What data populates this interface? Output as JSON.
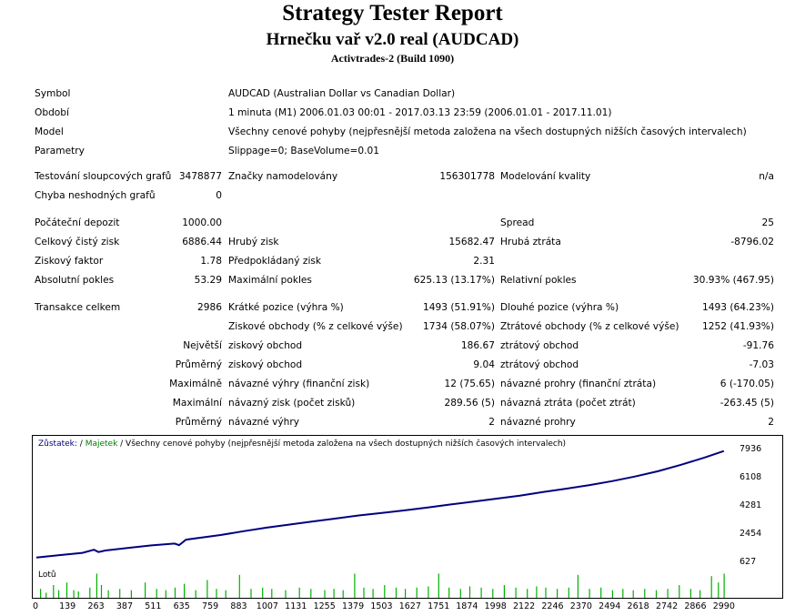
{
  "header": {
    "title": "Strategy Tester Report",
    "subtitle": "Hrnečku vař v2.0 real (AUDCAD)",
    "broker": "Activtrades-2 (Build 1090)"
  },
  "info": {
    "symbol_label": "Symbol",
    "symbol_value": "AUDCAD (Australian Dollar vs Canadian Dollar)",
    "period_label": "Období",
    "period_value": "1 minuta (M1) 2006.01.03 00:01 - 2017.03.13 23:59 (2006.01.01 - 2017.11.01)",
    "model_label": "Model",
    "model_value": "Všechny cenové pohyby (nejpřesnější metoda založena na všech dostupných nižších časových intervalech)",
    "params_label": "Parametry",
    "params_value": "Slippage=0; BaseVolume=0.01"
  },
  "stats": {
    "bars_tested_label": "Testování sloupcových grafů",
    "bars_tested_value": "3478877",
    "ticks_label": "Značky namodelovány",
    "ticks_value": "156301778",
    "quality_label": "Modelování kvality",
    "quality_value": "n/a",
    "mismatch_label": "Chyba neshodných grafů",
    "mismatch_value": "0",
    "deposit_label": "Počáteční depozit",
    "deposit_value": "1000.00",
    "spread_label": "Spread",
    "spread_value": "25",
    "net_profit_label": "Celkový čistý zisk",
    "net_profit_value": "6886.44",
    "gross_profit_label": "Hrubý zisk",
    "gross_profit_value": "15682.47",
    "gross_loss_label": "Hrubá ztráta",
    "gross_loss_value": "-8796.02",
    "profit_factor_label": "Ziskový faktor",
    "profit_factor_value": "1.78",
    "expected_payoff_label": "Předpokládaný zisk",
    "expected_payoff_value": "2.31",
    "abs_dd_label": "Absolutní pokles",
    "abs_dd_value": "53.29",
    "max_dd_label": "Maximální pokles",
    "max_dd_value": "625.13 (13.17%)",
    "rel_dd_label": "Relativní pokles",
    "rel_dd_value": "30.93% (467.95)",
    "total_trades_label": "Transakce celkem",
    "total_trades_value": "2986",
    "short_label": "Krátké pozice (výhra %)",
    "short_value": "1493 (51.91%)",
    "long_label": "Dlouhé pozice (výhra %)",
    "long_value": "1493 (64.23%)",
    "profit_trades_label": "Ziskové obchody (% z celkové výše)",
    "profit_trades_value": "1734 (58.07%)",
    "loss_trades_label": "Ztrátové obchody (% z celkové výše)",
    "loss_trades_value": "1252 (41.93%)",
    "largest_label": "Největší",
    "largest_profit_label": "ziskový obchod",
    "largest_profit_value": "186.67",
    "largest_loss_label": "ztrátový obchod",
    "largest_loss_value": "-91.76",
    "average_label": "Průměrný",
    "average_profit_label": "ziskový obchod",
    "average_profit_value": "9.04",
    "average_loss_label": "ztrátový obchod",
    "average_loss_value": "-7.03",
    "max_cons_label": "Maximálně",
    "max_cons_wins_label": "návazné výhry (finanční zisk)",
    "max_cons_wins_value": "12 (75.65)",
    "max_cons_losses_label": "návazné prohry (finanční ztráta)",
    "max_cons_losses_value": "6 (-170.05)",
    "maximal_label": "Maximální",
    "maximal_profit_label": "návazný zisk (počet zisků)",
    "maximal_profit_value": "289.56 (5)",
    "maximal_loss_label": "návazná ztráta (počet ztrát)",
    "maximal_loss_value": "-263.45 (5)",
    "avg_cons_label": "Průměrný",
    "avg_cons_wins_label": "návazné výhry",
    "avg_cons_wins_value": "2",
    "avg_cons_losses_label": "návazné prohry",
    "avg_cons_losses_value": "2"
  },
  "chart_data": {
    "type": "line",
    "legend": {
      "balance": "Zůstatek:",
      "separator": " / ",
      "equity": "Majetek",
      "rest": " / Všechny cenové pohyby (nejpřesnější metoda založena na všech dostupných nižších časových intervalech)"
    },
    "y_ticks": [
      "7936",
      "6108",
      "4281",
      "2454",
      "627"
    ],
    "y_tick_values": [
      7936,
      6108,
      4281,
      2454,
      627
    ],
    "x_ticks": [
      "0",
      "139",
      "263",
      "387",
      "511",
      "635",
      "759",
      "883",
      "1007",
      "1131",
      "1255",
      "1379",
      "1503",
      "1627",
      "1751",
      "1874",
      "1998",
      "2122",
      "2246",
      "2370",
      "2494",
      "2618",
      "2742",
      "2866",
      "2990"
    ],
    "ylim": [
      627,
      8400
    ],
    "xlim": [
      0,
      3050
    ],
    "series": [
      {
        "name": "Zůstatek",
        "color": "#000080",
        "x": [
          0,
          100,
          200,
          250,
          270,
          300,
          400,
          500,
          600,
          620,
          650,
          700,
          800,
          900,
          1000,
          1100,
          1200,
          1300,
          1400,
          1500,
          1600,
          1700,
          1800,
          1900,
          2000,
          2100,
          2200,
          2300,
          2400,
          2500,
          2600,
          2700,
          2800,
          2900,
          2986
        ],
        "y": [
          1000,
          1150,
          1300,
          1500,
          1350,
          1450,
          1620,
          1780,
          1900,
          1800,
          2150,
          2250,
          2450,
          2700,
          2930,
          3130,
          3330,
          3520,
          3720,
          3880,
          4050,
          4230,
          4430,
          4620,
          4810,
          5000,
          5230,
          5450,
          5680,
          5940,
          6240,
          6580,
          7000,
          7450,
          7886
        ]
      },
      {
        "name": "Majetek",
        "color": "#008000",
        "x": [],
        "y": []
      }
    ],
    "lots_label": "Lotů",
    "lots_bars": [
      {
        "x": 16,
        "v": 0.35
      },
      {
        "x": 40,
        "v": 0.2
      },
      {
        "x": 72,
        "v": 0.5
      },
      {
        "x": 95,
        "v": 0.3
      },
      {
        "x": 130,
        "v": 0.6
      },
      {
        "x": 160,
        "v": 0.3
      },
      {
        "x": 180,
        "v": 0.25
      },
      {
        "x": 230,
        "v": 0.4
      },
      {
        "x": 260,
        "v": 0.95
      },
      {
        "x": 280,
        "v": 0.5
      },
      {
        "x": 310,
        "v": 0.3
      },
      {
        "x": 360,
        "v": 0.35
      },
      {
        "x": 410,
        "v": 0.3
      },
      {
        "x": 470,
        "v": 0.6
      },
      {
        "x": 520,
        "v": 0.35
      },
      {
        "x": 560,
        "v": 0.3
      },
      {
        "x": 600,
        "v": 0.4
      },
      {
        "x": 640,
        "v": 0.55
      },
      {
        "x": 690,
        "v": 0.3
      },
      {
        "x": 740,
        "v": 0.7
      },
      {
        "x": 780,
        "v": 0.35
      },
      {
        "x": 820,
        "v": 0.3
      },
      {
        "x": 880,
        "v": 0.9
      },
      {
        "x": 930,
        "v": 0.35
      },
      {
        "x": 980,
        "v": 0.4
      },
      {
        "x": 1020,
        "v": 0.35
      },
      {
        "x": 1080,
        "v": 0.3
      },
      {
        "x": 1140,
        "v": 0.4
      },
      {
        "x": 1190,
        "v": 0.35
      },
      {
        "x": 1250,
        "v": 0.3
      },
      {
        "x": 1290,
        "v": 0.35
      },
      {
        "x": 1330,
        "v": 0.3
      },
      {
        "x": 1380,
        "v": 0.95
      },
      {
        "x": 1420,
        "v": 0.4
      },
      {
        "x": 1460,
        "v": 0.35
      },
      {
        "x": 1510,
        "v": 0.5
      },
      {
        "x": 1560,
        "v": 0.4
      },
      {
        "x": 1600,
        "v": 0.35
      },
      {
        "x": 1650,
        "v": 0.4
      },
      {
        "x": 1700,
        "v": 0.45
      },
      {
        "x": 1745,
        "v": 0.95
      },
      {
        "x": 1790,
        "v": 0.4
      },
      {
        "x": 1840,
        "v": 0.35
      },
      {
        "x": 1880,
        "v": 0.45
      },
      {
        "x": 1930,
        "v": 0.4
      },
      {
        "x": 1980,
        "v": 0.35
      },
      {
        "x": 2030,
        "v": 0.5
      },
      {
        "x": 2080,
        "v": 0.4
      },
      {
        "x": 2130,
        "v": 0.35
      },
      {
        "x": 2170,
        "v": 0.45
      },
      {
        "x": 2210,
        "v": 0.4
      },
      {
        "x": 2260,
        "v": 0.35
      },
      {
        "x": 2310,
        "v": 0.4
      },
      {
        "x": 2350,
        "v": 0.9
      },
      {
        "x": 2400,
        "v": 0.35
      },
      {
        "x": 2450,
        "v": 0.4
      },
      {
        "x": 2500,
        "v": 0.3
      },
      {
        "x": 2545,
        "v": 0.35
      },
      {
        "x": 2590,
        "v": 0.3
      },
      {
        "x": 2640,
        "v": 0.35
      },
      {
        "x": 2690,
        "v": 0.3
      },
      {
        "x": 2740,
        "v": 0.35
      },
      {
        "x": 2790,
        "v": 0.5
      },
      {
        "x": 2840,
        "v": 0.35
      },
      {
        "x": 2880,
        "v": 0.3
      },
      {
        "x": 2930,
        "v": 0.85
      },
      {
        "x": 2960,
        "v": 0.6
      },
      {
        "x": 2985,
        "v": 0.95
      }
    ]
  }
}
